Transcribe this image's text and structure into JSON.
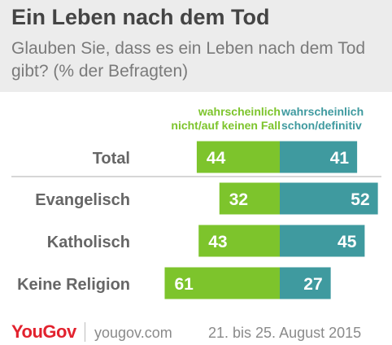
{
  "header": {
    "title": "Ein Leben nach dem Tod",
    "subtitle": "Glauben Sie, dass es ein Leben nach dem Tod gibt? (% der Befragten)"
  },
  "colors": {
    "negative": "#7dc42c",
    "positive": "#3f9a9f",
    "header_bg": "#ececec",
    "category_text": "#666666",
    "brand": "#e2222e"
  },
  "chart_data": {
    "type": "bar",
    "orientation": "horizontal-diverging",
    "categories": [
      "Total",
      "Evangelisch",
      "Katholisch",
      "Keine Religion"
    ],
    "series": [
      {
        "name": "wahrscheinlich nicht/auf keinen Fall",
        "values": [
          44,
          32,
          43,
          61
        ]
      },
      {
        "name": "wahrscheinlich schon/definitiv",
        "values": [
          41,
          52,
          45,
          27
        ]
      }
    ],
    "legend": {
      "negative_line1": "wahrscheinlich",
      "negative_line2": "nicht/auf keinen Fall",
      "positive_line1": "wahrscheinlich",
      "positive_line2": "schon/definitiv"
    }
  },
  "footer": {
    "brand": "YouGov",
    "site": "yougov.com",
    "date": "21. bis 25. August 2015"
  }
}
